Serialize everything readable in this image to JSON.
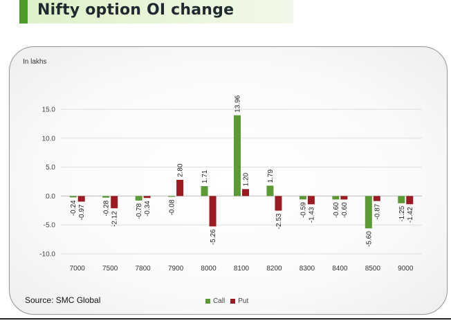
{
  "header": {
    "title": "Nifty option OI change"
  },
  "source": "Source: SMC Global",
  "chart_data": {
    "type": "bar",
    "title": "",
    "xlabel": "",
    "ylabel": "In lakhs",
    "ylim": [
      -10,
      15
    ],
    "yticks": [
      "15.0",
      "10.0",
      "5.0",
      "0.0",
      "-5.0",
      "-10.0"
    ],
    "grid": true,
    "legend_position": "bottom",
    "categories": [
      "7000",
      "7500",
      "7800",
      "7900",
      "8000",
      "8100",
      "8200",
      "8300",
      "8400",
      "8500",
      "9000"
    ],
    "series": [
      {
        "name": "Call",
        "color": "#5b9a35",
        "values": [
          -0.24,
          -0.28,
          -0.78,
          -0.08,
          1.71,
          13.96,
          1.79,
          -0.59,
          -0.6,
          -5.6,
          -1.25
        ],
        "labels": [
          "-0.24",
          "-0.28",
          "-0.78",
          "-0.08",
          "1.71",
          "13.96",
          "1.79",
          "-0.59",
          "-0.60",
          "-5.60",
          "-1.25"
        ]
      },
      {
        "name": "Put",
        "color": "#9b1b22",
        "values": [
          -0.97,
          -2.12,
          -0.34,
          2.8,
          -5.26,
          1.2,
          -2.53,
          -1.43,
          -0.6,
          -0.87,
          -1.42
        ],
        "labels": [
          "-0.97",
          "-2.12",
          "-0.34",
          "2.80",
          "-5.26",
          "1.20",
          "-2.53",
          "-1.43",
          "-0.60",
          "-0.87",
          "-1.42"
        ]
      }
    ]
  }
}
